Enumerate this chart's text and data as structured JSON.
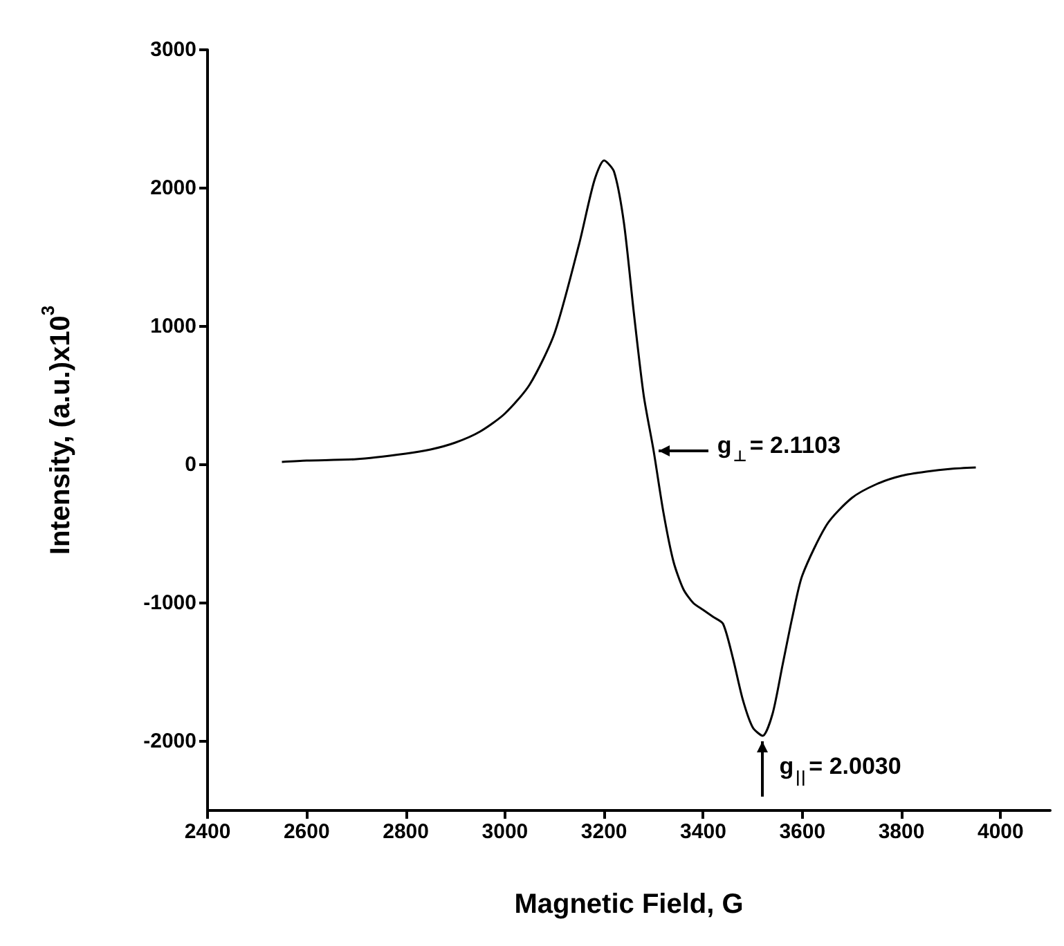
{
  "chart_data": {
    "type": "line",
    "xlabel": "Magnetic Field, G",
    "ylabel": "Intensity, (a.u.)x10$^{3}$",
    "x": [
      2550,
      2600,
      2700,
      2800,
      2850,
      2900,
      2950,
      3000,
      3050,
      3100,
      3150,
      3180,
      3200,
      3220,
      3240,
      3260,
      3280,
      3300,
      3320,
      3340,
      3360,
      3380,
      3400,
      3420,
      3440,
      3460,
      3480,
      3500,
      3520,
      3540,
      3560,
      3580,
      3600,
      3650,
      3700,
      3750,
      3800,
      3850,
      3900,
      3950
    ],
    "series": [
      {
        "color": "#000000",
        "values": [
          20,
          30,
          40,
          80,
          110,
          160,
          240,
          370,
          580,
          950,
          1600,
          2050,
          2200,
          2120,
          1750,
          1100,
          500,
          100,
          -350,
          -700,
          -900,
          -1000,
          -1050,
          -1100,
          -1150,
          -1400,
          -1700,
          -1900,
          -1960,
          -1800,
          -1450,
          -1100,
          -800,
          -430,
          -240,
          -140,
          -80,
          -50,
          -30,
          -20
        ]
      }
    ],
    "xlim": [
      2400,
      4100
    ],
    "xticks": [
      2400,
      2600,
      2800,
      3000,
      3200,
      3400,
      3600,
      3800,
      4000
    ],
    "ylim": [
      -2500,
      3000
    ],
    "yticks": [
      -2000,
      -1000,
      0,
      1000,
      2000,
      3000
    ],
    "grid": false,
    "marker": "none",
    "line_style": "solid",
    "annotations": [
      {
        "text": "g$_{⊥}$= 2.1103",
        "x": 3300,
        "y": 100
      },
      {
        "text": "g$_{||}$= 2.0030",
        "x": 3520,
        "y": -1960
      }
    ]
  }
}
